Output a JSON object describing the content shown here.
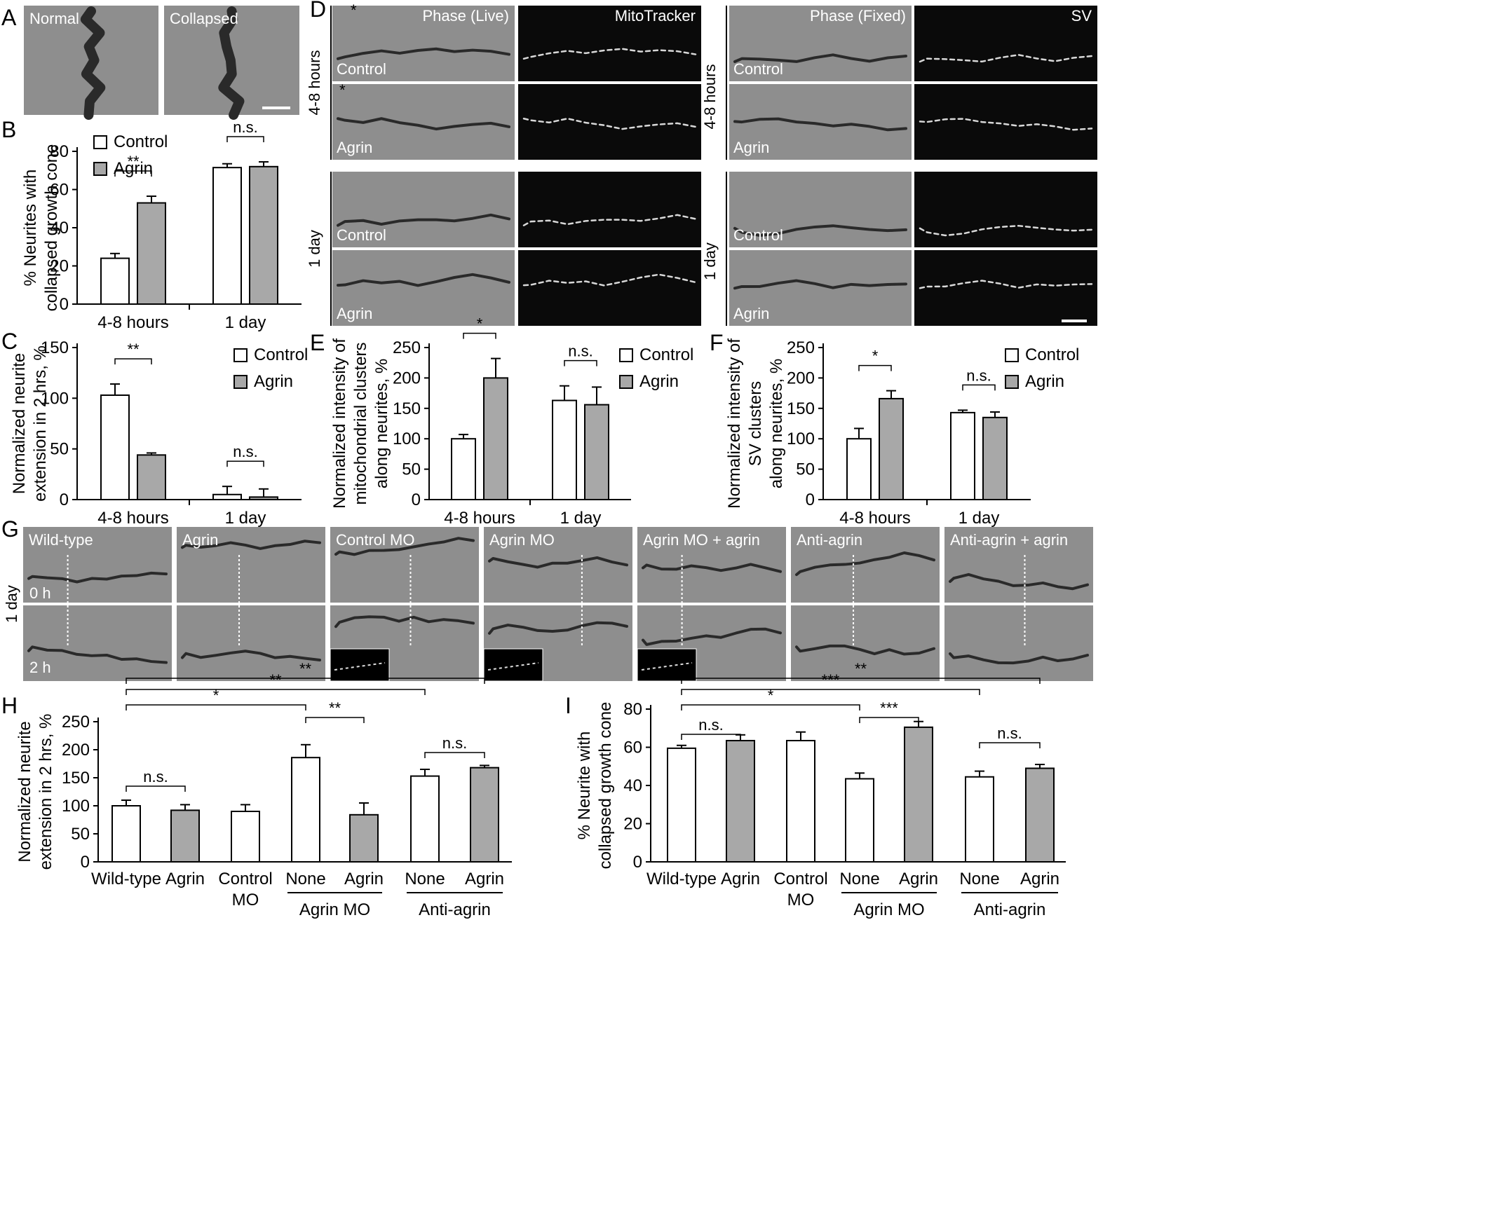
{
  "panel_letters": [
    "A",
    "B",
    "C",
    "D",
    "E",
    "F",
    "G",
    "H",
    "I"
  ],
  "panel_a": {
    "labels": [
      "Normal",
      "Collapsed"
    ]
  },
  "panel_d": {
    "left_headers": [
      "Phase (Live)",
      "MitoTracker"
    ],
    "right_headers": [
      "Phase (Fixed)",
      "SV"
    ],
    "times": [
      "4-8 hours",
      "1 day"
    ],
    "conditions": [
      "Control",
      "Agrin"
    ],
    "asterisk": "*"
  },
  "panel_g": {
    "conditions": [
      "Wild-type",
      "Agrin",
      "Control MO",
      "Agrin MO",
      "Agrin MO + agrin",
      "Anti-agrin",
      "Anti-agrin + agrin"
    ],
    "time_labels": [
      "0 h",
      "2 h"
    ],
    "side_label": "1 day"
  },
  "legend": {
    "control": "Control",
    "agrin": "Agrin"
  },
  "colors": {
    "control": "#ffffff",
    "agrin": "#a8a8a8",
    "phase_bg": "#8e8e8e",
    "fluor_bg": "#0a0a0a"
  },
  "chart_data": [
    {
      "id": "B",
      "type": "bar",
      "ylabel": [
        "% Neurites with",
        "collapsed growth cone"
      ],
      "categories": [
        "4-8 hours",
        "1 day"
      ],
      "series": [
        {
          "name": "Control",
          "values": [
            24,
            71.5
          ],
          "errors": [
            2.5,
            2
          ]
        },
        {
          "name": "Agrin",
          "values": [
            53,
            72
          ],
          "errors": [
            3.5,
            2.5
          ]
        }
      ],
      "ylim": [
        0,
        80
      ],
      "yticks": [
        0,
        20,
        40,
        60,
        80
      ],
      "significance": [
        {
          "group": 0,
          "label": "**"
        },
        {
          "group": 1,
          "label": "n.s."
        }
      ]
    },
    {
      "id": "C",
      "type": "bar",
      "ylabel": [
        "Normalized neurite",
        "extension in 2 hrs, %"
      ],
      "categories": [
        "4-8 hours",
        "1 day"
      ],
      "series": [
        {
          "name": "Control",
          "values": [
            103,
            5
          ],
          "errors": [
            11,
            8
          ]
        },
        {
          "name": "Agrin",
          "values": [
            44,
            2.5
          ],
          "errors": [
            2,
            8
          ]
        }
      ],
      "ylim": [
        0,
        150
      ],
      "yticks": [
        0,
        50,
        100,
        150
      ],
      "significance": [
        {
          "group": 0,
          "label": "**"
        },
        {
          "group": 1,
          "label": "n.s."
        }
      ]
    },
    {
      "id": "E",
      "type": "bar",
      "ylabel": [
        "Normalized intensity of",
        "mitochondrial clusters",
        "along neurites, %"
      ],
      "categories": [
        "4-8 hours",
        "1 day"
      ],
      "series": [
        {
          "name": "Control",
          "values": [
            100,
            163
          ],
          "errors": [
            7,
            24
          ]
        },
        {
          "name": "Agrin",
          "values": [
            200,
            156
          ],
          "errors": [
            32,
            29
          ]
        }
      ],
      "ylim": [
        0,
        250
      ],
      "yticks": [
        0,
        50,
        100,
        150,
        200,
        250
      ],
      "significance": [
        {
          "group": 0,
          "label": "*"
        },
        {
          "group": 1,
          "label": "n.s."
        }
      ]
    },
    {
      "id": "F",
      "type": "bar",
      "ylabel": [
        "Normalized intensity of",
        "SV clusters",
        "along neurites, %"
      ],
      "categories": [
        "4-8 hours",
        "1 day"
      ],
      "series": [
        {
          "name": "Control",
          "values": [
            100,
            143
          ],
          "errors": [
            17,
            4
          ]
        },
        {
          "name": "Agrin",
          "values": [
            166,
            135
          ],
          "errors": [
            13,
            9
          ]
        }
      ],
      "ylim": [
        0,
        250
      ],
      "yticks": [
        0,
        50,
        100,
        150,
        200,
        250
      ],
      "significance": [
        {
          "group": 0,
          "label": "*"
        },
        {
          "group": 1,
          "label": "n.s."
        }
      ]
    },
    {
      "id": "H",
      "type": "bar",
      "ylabel": [
        "Normalized neurite",
        "extension in 2 hrs, %"
      ],
      "bars": [
        {
          "label": "Wild-type",
          "value": 100,
          "error": 10,
          "fill": "Control"
        },
        {
          "label": "Agrin",
          "value": 92,
          "error": 10,
          "fill": "Agrin"
        },
        {
          "label": [
            "Control",
            "MO"
          ],
          "value": 90,
          "error": 12,
          "fill": "Control"
        },
        {
          "label": "None",
          "value": 186,
          "error": 23,
          "fill": "Control"
        },
        {
          "label": "Agrin",
          "value": 84,
          "error": 21,
          "fill": "Agrin"
        },
        {
          "label": "None",
          "value": 153,
          "error": 12,
          "fill": "Control"
        },
        {
          "label": "Agrin",
          "value": 168,
          "error": 4,
          "fill": "Agrin"
        }
      ],
      "groups": [
        {
          "label": "Agrin MO",
          "bars": [
            3,
            4
          ]
        },
        {
          "label": "Anti-agrin",
          "bars": [
            5,
            6
          ]
        }
      ],
      "ylim": [
        0,
        250
      ],
      "yticks": [
        0,
        50,
        100,
        150,
        200,
        250
      ],
      "significance": [
        {
          "from": 0,
          "to": 1,
          "label": "n.s."
        },
        {
          "from": 5,
          "to": 6,
          "label": "n.s."
        },
        {
          "from": 3,
          "to": 4,
          "label": "**"
        },
        {
          "from": 0,
          "to": 3,
          "label": "*"
        },
        {
          "from": 0,
          "to": 5,
          "label": "**"
        },
        {
          "from": 0,
          "to": 6,
          "label": "**"
        }
      ]
    },
    {
      "id": "I",
      "type": "bar",
      "ylabel": [
        "% Neurite with",
        "collapsed growth cone"
      ],
      "bars": [
        {
          "label": "Wild-type",
          "value": 59.5,
          "error": 1.5,
          "fill": "Control"
        },
        {
          "label": "Agrin",
          "value": 63.5,
          "error": 3,
          "fill": "Agrin"
        },
        {
          "label": [
            "Control",
            "MO"
          ],
          "value": 63.5,
          "error": 4.5,
          "fill": "Control"
        },
        {
          "label": "None",
          "value": 43.5,
          "error": 3,
          "fill": "Control"
        },
        {
          "label": "Agrin",
          "value": 70.5,
          "error": 3,
          "fill": "Agrin"
        },
        {
          "label": "None",
          "value": 44.5,
          "error": 3,
          "fill": "Control"
        },
        {
          "label": "Agrin",
          "value": 49,
          "error": 2,
          "fill": "Agrin"
        }
      ],
      "groups": [
        {
          "label": "Agrin MO",
          "bars": [
            3,
            4
          ]
        },
        {
          "label": "Anti-agrin",
          "bars": [
            5,
            6
          ]
        }
      ],
      "ylim": [
        0,
        80
      ],
      "yticks": [
        0,
        20,
        40,
        60,
        80
      ],
      "significance": [
        {
          "from": 0,
          "to": 1,
          "label": "n.s."
        },
        {
          "from": 5,
          "to": 6,
          "label": "n.s."
        },
        {
          "from": 3,
          "to": 4,
          "label": "***"
        },
        {
          "from": 0,
          "to": 3,
          "label": "*"
        },
        {
          "from": 0,
          "to": 5,
          "label": "***"
        },
        {
          "from": 0,
          "to": 6,
          "label": "**"
        }
      ]
    }
  ]
}
